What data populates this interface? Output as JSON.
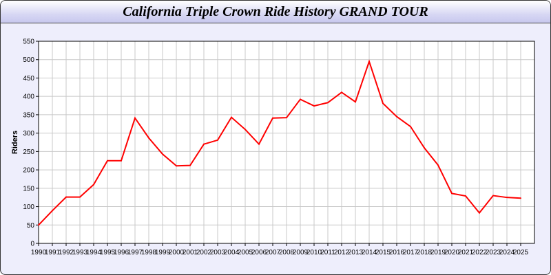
{
  "chart_data": {
    "type": "line",
    "title": "California Triple Crown Ride History GRAND TOUR",
    "xlabel": "",
    "ylabel": "Riders",
    "ylim": [
      0,
      550
    ],
    "xlim": [
      1990,
      2026
    ],
    "yticks": [
      0,
      50,
      100,
      150,
      200,
      250,
      300,
      350,
      400,
      450,
      500,
      550
    ],
    "grid": true,
    "line_color": "#ff0000",
    "x": [
      1990,
      1991,
      1992,
      1993,
      1994,
      1995,
      1996,
      1997,
      1998,
      1999,
      2000,
      2001,
      2002,
      2003,
      2004,
      2005,
      2006,
      2007,
      2008,
      2009,
      2010,
      2011,
      2012,
      2013,
      2014,
      2015,
      2016,
      2017,
      2018,
      2019,
      2020,
      2021,
      2022,
      2023,
      2024,
      2025
    ],
    "series": [
      {
        "values": [
          50,
          89,
          126,
          126,
          160,
          225,
          225,
          341,
          287,
          243,
          211,
          212,
          270,
          281,
          343,
          310,
          270,
          341,
          342,
          392,
          374,
          383,
          411,
          385,
          495,
          381,
          345,
          318,
          260,
          213,
          136,
          129,
          83,
          130,
          125,
          123
        ]
      }
    ]
  }
}
